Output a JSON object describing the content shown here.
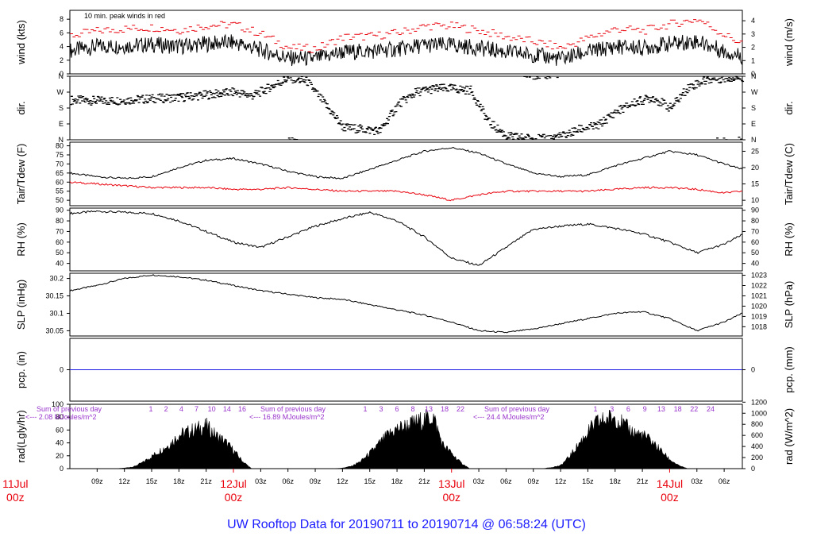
{
  "chart_data": {
    "type": "line",
    "title": "UW Rooftop Data for 20190711  to  20190714 @ 06:58:24  (UTC)",
    "x_range_hours": [
      0,
      74
    ],
    "x_ticks": [
      {
        "h": 3,
        "label": "09z"
      },
      {
        "h": 6,
        "label": "12z"
      },
      {
        "h": 9,
        "label": "15z"
      },
      {
        "h": 12,
        "label": "18z"
      },
      {
        "h": 15,
        "label": "21z"
      },
      {
        "h": 21,
        "label": "03z"
      },
      {
        "h": 24,
        "label": "06z"
      },
      {
        "h": 27,
        "label": "09z"
      },
      {
        "h": 30,
        "label": "12z"
      },
      {
        "h": 33,
        "label": "15z"
      },
      {
        "h": 36,
        "label": "18z"
      },
      {
        "h": 39,
        "label": "21z"
      },
      {
        "h": 45,
        "label": "03z"
      },
      {
        "h": 48,
        "label": "06z"
      },
      {
        "h": 51,
        "label": "09z"
      },
      {
        "h": 54,
        "label": "12z"
      },
      {
        "h": 57,
        "label": "15z"
      },
      {
        "h": 60,
        "label": "18z"
      },
      {
        "h": 63,
        "label": "21z"
      },
      {
        "h": 69,
        "label": "03z"
      },
      {
        "h": 72,
        "label": "06z"
      }
    ],
    "day_labels": [
      {
        "h": -6,
        "date": "11Jul",
        "time": "00z"
      },
      {
        "h": 18,
        "date": "12Jul",
        "time": "00z"
      },
      {
        "h": 42,
        "date": "13Jul",
        "time": "00z"
      },
      {
        "h": 66,
        "date": "14Jul",
        "time": "00z"
      }
    ],
    "panels": [
      {
        "key": "wind",
        "ylabel": "wind (kts)",
        "ylabel_right": "wind (m/s)",
        "ylim": [
          0,
          9.3
        ],
        "ticks_left": [
          0,
          2,
          4,
          6,
          8
        ],
        "ticks_right": [
          0,
          1,
          2,
          3,
          4
        ],
        "right_factor": 1.944,
        "note": "10 min. peak winds in red",
        "series": [
          {
            "name": "wind",
            "x": [
              0,
              3,
              6,
              9,
              12,
              15,
              18,
              21,
              24,
              27,
              30,
              33,
              36,
              39,
              42,
              45,
              48,
              51,
              54,
              57,
              60,
              63,
              66,
              69,
              72,
              74
            ],
            "y": [
              3.4,
              4,
              4.1,
              4.3,
              4,
              4.4,
              4.6,
              3.5,
              2.3,
              2.2,
              3.2,
              3.3,
              3.6,
              4.2,
              4.2,
              3.8,
              3.2,
              2.8,
              2.2,
              3.2,
              4,
              3.8,
              4.4,
              4.8,
              3.3,
              2.6
            ]
          },
          {
            "name": "peak",
            "x": [
              0,
              3,
              6,
              9,
              12,
              15,
              18,
              21,
              24,
              27,
              30,
              33,
              36,
              39,
              42,
              45,
              48,
              51,
              54,
              57,
              60,
              63,
              66,
              69,
              72,
              74
            ],
            "y": [
              5.6,
              6.3,
              6.6,
              6.8,
              6.4,
              7.1,
              7.2,
              5.8,
              3.8,
              3.7,
              5.4,
              5.5,
              6,
              7,
              7,
              6.3,
              5.4,
              4.7,
              3.8,
              5.3,
              6.6,
              6.3,
              7.3,
              8,
              5.6,
              4.4
            ]
          }
        ]
      },
      {
        "key": "dir",
        "ylabel": "dir.",
        "ylabel_right": "dir.",
        "ylim": [
          0,
          360
        ],
        "ticks_left": [
          "N",
          "E",
          "S",
          "W",
          "N"
        ],
        "ticks_right": [
          "N",
          "E",
          "S",
          "W",
          "N"
        ],
        "series": [
          {
            "name": "direction",
            "x": [
              0,
              4,
              8,
              12,
              14,
              16,
              18,
              20,
              22,
              24,
              26,
              30,
              34,
              36,
              38,
              40,
              42,
              44,
              46,
              48,
              50,
              52,
              54,
              56,
              58,
              60,
              62,
              64,
              66,
              68,
              70,
              72,
              74
            ],
            "y": [
              225,
              220,
              230,
              240,
              250,
              260,
              270,
              250,
              300,
              350,
              330,
              70,
              50,
              200,
              270,
              290,
              290,
              280,
              100,
              20,
              10,
              5,
              20,
              60,
              80,
              160,
              210,
              240,
              180,
              300,
              340,
              350,
              355
            ]
          }
        ]
      },
      {
        "key": "temp",
        "ylabel": "Tair/Tdew (F)",
        "ylabel_right": "Tair/Tdew (C)",
        "ylim": [
          47,
          82
        ],
        "ticks_left": [
          50,
          55,
          60,
          65,
          70,
          75,
          80
        ],
        "ticks_right": [
          10,
          15,
          20,
          25
        ],
        "series": [
          {
            "name": "Tair",
            "x": [
              0,
              3,
              6,
              9,
              12,
              15,
              18,
              21,
              24,
              27,
              30,
              33,
              36,
              39,
              42,
              45,
              48,
              51,
              54,
              57,
              60,
              63,
              66,
              69,
              72,
              74
            ],
            "y": [
              65,
              63,
              62,
              63,
              68,
              72,
              73,
              70,
              66,
              63,
              62,
              67,
              72,
              77,
              79,
              76,
              70,
              65,
              63,
              64,
              69,
              73,
              77,
              75,
              70,
              67
            ]
          },
          {
            "name": "Tdew",
            "x": [
              0,
              3,
              6,
              9,
              12,
              15,
              18,
              21,
              24,
              27,
              30,
              33,
              36,
              39,
              42,
              45,
              48,
              51,
              54,
              57,
              60,
              63,
              66,
              69,
              72,
              74
            ],
            "y": [
              60,
              59,
              58,
              57,
              57,
              57,
              56,
              56,
              57,
              56,
              55,
              55,
              55,
              53,
              50,
              53,
              55,
              55,
              55,
              55,
              56,
              57,
              57,
              56,
              54,
              55
            ]
          }
        ]
      },
      {
        "key": "rh",
        "ylabel": "RH (%)",
        "ylabel_right": "RH (%)",
        "ylim": [
          33,
          92
        ],
        "ticks_left": [
          40,
          50,
          60,
          70,
          80,
          90
        ],
        "ticks_right": [
          40,
          50,
          60,
          70,
          80,
          90
        ],
        "series": [
          {
            "name": "RH",
            "x": [
              0,
              3,
              6,
              9,
              12,
              15,
              18,
              21,
              24,
              27,
              30,
              33,
              36,
              39,
              42,
              45,
              48,
              51,
              54,
              57,
              60,
              63,
              66,
              69,
              72,
              74
            ],
            "y": [
              87,
              89,
              88,
              87,
              80,
              70,
              60,
              55,
              65,
              75,
              82,
              88,
              80,
              65,
              45,
              38,
              55,
              72,
              75,
              77,
              73,
              68,
              60,
              50,
              58,
              67
            ]
          }
        ]
      },
      {
        "key": "slp",
        "ylabel": "SLP (inHg)",
        "ylabel_right": "SLP (hPa)",
        "ylim": [
          30.035,
          30.215
        ],
        "ticks_left": [
          30.05,
          30.1,
          30.15,
          30.2
        ],
        "ticks_right": [
          1018,
          1019,
          1020,
          1021,
          1022,
          1023
        ],
        "series": [
          {
            "name": "SLP",
            "x": [
              0,
              3,
              6,
              9,
              12,
              15,
              18,
              21,
              24,
              27,
              30,
              33,
              36,
              39,
              42,
              45,
              48,
              51,
              54,
              57,
              60,
              63,
              66,
              69,
              72,
              74
            ],
            "y": [
              30.165,
              30.18,
              30.2,
              30.21,
              30.205,
              30.195,
              30.18,
              30.165,
              30.155,
              30.145,
              30.14,
              30.125,
              30.11,
              30.095,
              30.075,
              30.05,
              30.045,
              30.055,
              30.07,
              30.085,
              30.1,
              30.105,
              30.085,
              30.05,
              30.075,
              30.1
            ]
          }
        ]
      },
      {
        "key": "pcp",
        "ylabel": "pcp. (in)",
        "ylabel_right": "pcp. (mm)",
        "ylim": [
          -1,
          1
        ],
        "ticks_left": [
          0
        ],
        "ticks_right": [
          0
        ],
        "series": [
          {
            "name": "precip",
            "x": [
              0,
              74
            ],
            "y": [
              0,
              0
            ]
          }
        ]
      },
      {
        "key": "rad",
        "ylabel": "rad(Lgly/hr)",
        "ylabel_right": "rad (W/m^2)",
        "ylim": [
          0,
          100
        ],
        "ticks_left": [
          0,
          20,
          40,
          60,
          80,
          100
        ],
        "ticks_right": [
          0,
          200,
          400,
          600,
          800,
          1000,
          1200
        ],
        "right_factor": 0.0861,
        "series": [
          {
            "name": "radiation",
            "x": [
              5,
              6,
              7,
              8,
              9,
              10,
              11,
              12,
              13,
              14,
              15,
              16,
              17,
              18,
              19,
              20,
              29,
              30,
              31,
              32,
              33,
              34,
              35,
              36,
              37,
              38,
              39,
              40,
              41,
              42,
              43,
              44,
              52,
              53,
              54,
              55,
              56,
              57,
              58,
              59,
              60,
              61,
              62,
              63,
              64,
              65,
              66,
              67,
              68
            ],
            "y": [
              0,
              1,
              3,
              10,
              20,
              30,
              40,
              55,
              60,
              65,
              70,
              55,
              45,
              30,
              12,
              0,
              0,
              1,
              4,
              12,
              25,
              40,
              55,
              65,
              70,
              75,
              80,
              85,
              40,
              25,
              10,
              0,
              0,
              2,
              5,
              20,
              40,
              60,
              75,
              80,
              85,
              70,
              60,
              55,
              45,
              30,
              15,
              5,
              0
            ]
          }
        ],
        "sunrise_hours": {
          "prefix": "Sum of previous day",
          "totals": [
            "<--- 2.08 MJoules/m^2",
            "<--- 16.89 MJoules/m^2",
            "<--- 24.4 MJoules/m^2"
          ],
          "day1": [
            "1",
            "2",
            "4",
            "7",
            "10",
            "14",
            "16"
          ],
          "day2": [
            "1",
            "3",
            "6",
            "8",
            "13",
            "18",
            "22"
          ],
          "day3": [
            "1",
            "3",
            "6",
            "9",
            "13",
            "18",
            "22",
            "24"
          ]
        }
      }
    ]
  }
}
